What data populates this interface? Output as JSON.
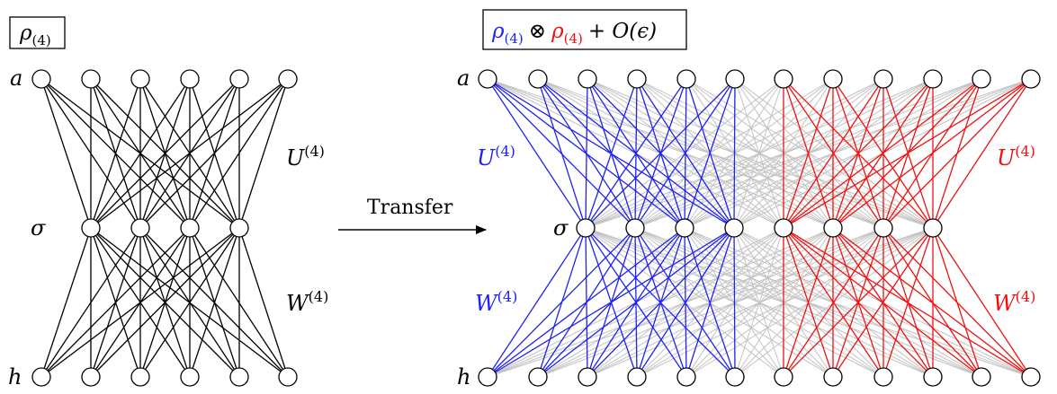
{
  "colors": {
    "black": "#000000",
    "blue": "#1f22f0",
    "red": "#ee1111",
    "gray": "#c2c2c2"
  },
  "left_panel": {
    "box_label": {
      "rho": "ρ",
      "sub": "(4)"
    },
    "top_layer_label": "a",
    "middle_layer_label": "σ",
    "bottom_layer_label": "h",
    "upper_weight_label": {
      "base": "U",
      "sup": "(4)"
    },
    "lower_weight_label": {
      "base": "W",
      "sup": "(4)"
    }
  },
  "transfer": {
    "label": "Transfer"
  },
  "right_panel": {
    "box_label": {
      "rho1": "ρ",
      "sub1": "(4)",
      "otimes": "⊗",
      "rho2": "ρ",
      "sub2": "(4)",
      "tail": "+ O(ϵ)"
    },
    "top_layer_label": "a",
    "middle_layer_label": "σ",
    "bottom_layer_label": "h",
    "upper_left_label": {
      "base": "U",
      "sup": "(4)"
    },
    "upper_right_label": {
      "base": "U",
      "sup": "(4)"
    },
    "lower_left_label": {
      "base": "W",
      "sup": "(4)"
    },
    "lower_right_label": {
      "base": "W",
      "sup": "(4)"
    }
  }
}
